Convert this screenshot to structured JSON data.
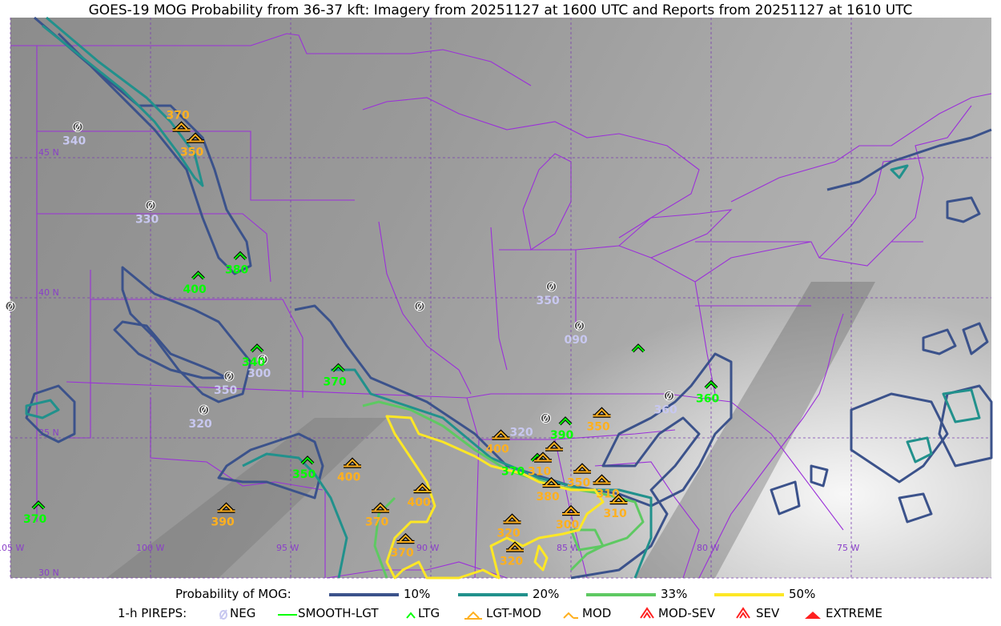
{
  "title": "GOES-19 MOG Probability from 36-37 kft: Imagery from 20251127 at 1600 UTC and Reports from 20251127 at 1610 UTC",
  "map": {
    "lat_labels": [
      {
        "lat": 45,
        "text": "45 N"
      },
      {
        "lat": 40,
        "text": "40 N"
      },
      {
        "lat": 35,
        "text": "35 N"
      },
      {
        "lat": 30,
        "text": "30 N"
      }
    ],
    "lon_labels": [
      {
        "lon": -105,
        "text": "105 W"
      },
      {
        "lon": -100,
        "text": "100 W"
      },
      {
        "lon": -95,
        "text": "95 W"
      },
      {
        "lon": -90,
        "text": "90 W"
      },
      {
        "lon": -85,
        "text": "85 W"
      },
      {
        "lon": -80,
        "text": "80 W"
      },
      {
        "lon": -75,
        "text": "75 W"
      }
    ],
    "grid": true,
    "colors": {
      "border": "#9b30d9",
      "grid": "#7a3fb0",
      "p10": "#3b528b",
      "p20": "#21918c",
      "p33": "#5ec962",
      "p50": "#fde725",
      "neg": "#c8c8f0",
      "ltg": "#00ff00",
      "mod": "#ffb01f"
    },
    "pireps": [
      {
        "type": "NEG",
        "lat": 46.1,
        "lon": -102.6,
        "alt": "340"
      },
      {
        "type": "NEG",
        "lat": 43.3,
        "lon": -100.0,
        "alt": "330"
      },
      {
        "type": "NEG",
        "lat": 39.7,
        "lon": -105.0,
        "alt": ""
      },
      {
        "type": "NEG",
        "lat": 39.7,
        "lon": -90.4,
        "alt": ""
      },
      {
        "type": "NEG",
        "lat": 40.4,
        "lon": -85.7,
        "alt": "350"
      },
      {
        "type": "NEG",
        "lat": 39.0,
        "lon": -84.7,
        "alt": "090"
      },
      {
        "type": "NEG",
        "lat": 37.2,
        "lon": -97.2,
        "alt": "350"
      },
      {
        "type": "NEG",
        "lat": 37.8,
        "lon": -96.0,
        "alt": "300"
      },
      {
        "type": "NEG",
        "lat": 36.0,
        "lon": -98.1,
        "alt": "320"
      },
      {
        "type": "NEG",
        "lat": 36.5,
        "lon": -81.5,
        "alt": "360"
      },
      {
        "type": "NEG",
        "lat": 35.7,
        "lon": -85.9,
        "alt": "320"
      },
      {
        "type": "LTG",
        "lat": 41.5,
        "lon": -96.8,
        "alt": "380"
      },
      {
        "type": "LTG",
        "lat": 40.8,
        "lon": -98.3,
        "alt": "400"
      },
      {
        "type": "LTG",
        "lat": 38.2,
        "lon": -96.2,
        "alt": "340"
      },
      {
        "type": "LTG",
        "lat": 37.5,
        "lon": -93.3,
        "alt": "370"
      },
      {
        "type": "LTG",
        "lat": 34.2,
        "lon": -94.4,
        "alt": "350"
      },
      {
        "type": "LTG",
        "lat": 32.6,
        "lon": -104.0,
        "alt": "370"
      },
      {
        "type": "LTG",
        "lat": 35.6,
        "lon": -85.2,
        "alt": "390"
      },
      {
        "type": "LTG",
        "lat": 38.2,
        "lon": -82.6,
        "alt": ""
      },
      {
        "type": "LTG",
        "lat": 36.9,
        "lon": -80.0,
        "alt": "360"
      },
      {
        "type": "LTG",
        "lat": 34.3,
        "lon": -86.2,
        "alt": "370"
      },
      {
        "type": "MOD",
        "lat": 45.7,
        "lon": -98.4,
        "alt": "350"
      },
      {
        "type": "MOD",
        "lat": 46.1,
        "lon": -98.9,
        "alt": "370"
      },
      {
        "type": "MOD",
        "lat": 34.1,
        "lon": -92.8,
        "alt": "400"
      },
      {
        "type": "MOD",
        "lat": 32.5,
        "lon": -97.3,
        "alt": "390"
      },
      {
        "type": "MOD",
        "lat": 33.2,
        "lon": -90.3,
        "alt": "400"
      },
      {
        "type": "MOD",
        "lat": 32.5,
        "lon": -91.8,
        "alt": "370"
      },
      {
        "type": "MOD",
        "lat": 31.4,
        "lon": -90.9,
        "alt": "370"
      },
      {
        "type": "MOD",
        "lat": 35.1,
        "lon": -87.5,
        "alt": "400"
      },
      {
        "type": "MOD",
        "lat": 34.3,
        "lon": -86.0,
        "alt": "310"
      },
      {
        "type": "MOD",
        "lat": 34.7,
        "lon": -85.6,
        "alt": ""
      },
      {
        "type": "MOD",
        "lat": 33.9,
        "lon": -84.6,
        "alt": "350"
      },
      {
        "type": "MOD",
        "lat": 33.4,
        "lon": -85.7,
        "alt": "380"
      },
      {
        "type": "MOD",
        "lat": 33.5,
        "lon": -83.9,
        "alt": "310"
      },
      {
        "type": "MOD",
        "lat": 32.4,
        "lon": -85.0,
        "alt": "300"
      },
      {
        "type": "MOD",
        "lat": 32.8,
        "lon": -83.3,
        "alt": "310"
      },
      {
        "type": "MOD",
        "lat": 32.1,
        "lon": -87.1,
        "alt": "320"
      },
      {
        "type": "MOD",
        "lat": 31.1,
        "lon": -87.0,
        "alt": "320"
      },
      {
        "type": "MOD",
        "lat": 35.9,
        "lon": -83.9,
        "alt": "350"
      }
    ]
  },
  "legend": {
    "prob_title": "Probability of MOG:",
    "prob_items": [
      {
        "label": "10%",
        "color": "#3b528b"
      },
      {
        "label": "20%",
        "color": "#21918c"
      },
      {
        "label": "33%",
        "color": "#5ec962"
      },
      {
        "label": "50%",
        "color": "#fde725"
      }
    ],
    "pirep_title": "1-h PIREPS:",
    "pirep_items": [
      {
        "label": "NEG",
        "icon": "neg-icon",
        "color": "#c8c8f0"
      },
      {
        "label": "SMOOTH-LGT",
        "icon": "smooth-lgt-icon",
        "color": "#00ff00"
      },
      {
        "label": "LTG",
        "icon": "ltg-icon",
        "color": "#00ff00"
      },
      {
        "label": "LGT-MOD",
        "icon": "lgt-mod-icon",
        "color": "#ffb01f"
      },
      {
        "label": "MOD",
        "icon": "mod-icon",
        "color": "#ffb01f"
      },
      {
        "label": "MOD-SEV",
        "icon": "mod-sev-icon",
        "color": "#ff2020"
      },
      {
        "label": "SEV",
        "icon": "sev-icon",
        "color": "#ff2020"
      },
      {
        "label": "EXTREME",
        "icon": "extreme-icon",
        "color": "#ff2020"
      }
    ]
  }
}
